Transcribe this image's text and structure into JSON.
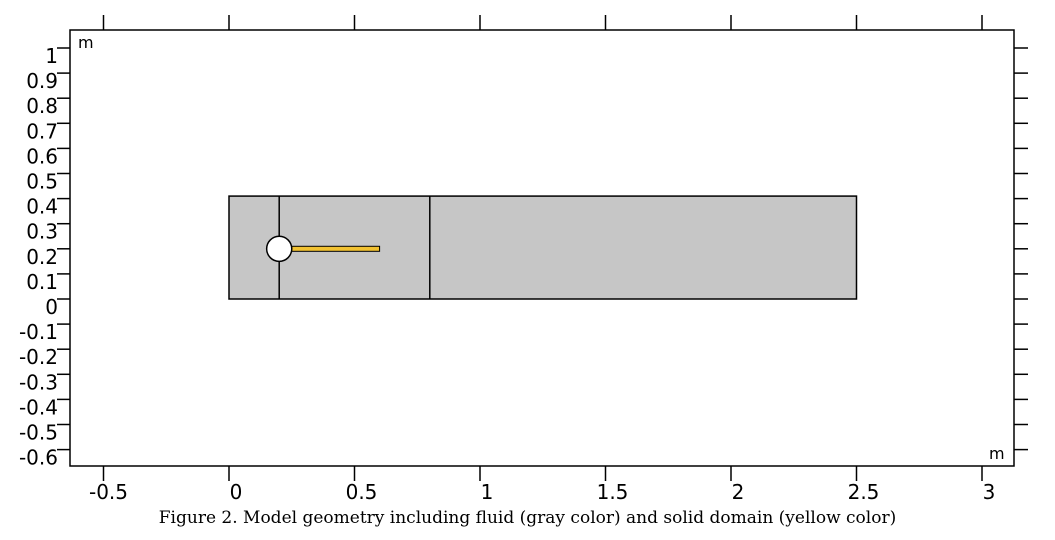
{
  "chart_data": {
    "type": "geometry",
    "x_unit": "m",
    "y_unit": "m",
    "xlim": [
      -0.65,
      3.13
    ],
    "ylim": [
      -0.66,
      1.07
    ],
    "x_ticks": [
      -0.5,
      0,
      0.5,
      1,
      1.5,
      2,
      2.5,
      3
    ],
    "x_tick_labels": [
      "-0.5",
      "0",
      "0.5",
      "1",
      "1.5",
      "2",
      "2.5",
      "3"
    ],
    "y_ticks": [
      1,
      0.9,
      0.8,
      0.7,
      0.6,
      0.5,
      0.4,
      0.3,
      0.2,
      0.1,
      0,
      -0.1,
      -0.2,
      -0.3,
      -0.4,
      -0.5,
      -0.6
    ],
    "y_tick_labels": [
      "1",
      "0.9",
      "0.8",
      "0.7",
      "0.6",
      "0.5",
      "0.4",
      "0.3",
      "0.2",
      "0.1",
      "0",
      "-0.1",
      "-0.2",
      "-0.3",
      "-0.4",
      "-0.5",
      "-0.6"
    ],
    "fluid_domain": {
      "x": [
        0,
        2.5
      ],
      "y": [
        0,
        0.41
      ],
      "color": "#c6c6c6"
    },
    "partition_lines_x": [
      0.2,
      0.8
    ],
    "cylinder": {
      "cx": 0.2,
      "cy": 0.2,
      "r": 0.05,
      "color": "#ffffff"
    },
    "solid_beam": {
      "x": [
        0.25,
        0.6
      ],
      "y": [
        0.19,
        0.21
      ],
      "color": "#f2c232"
    }
  },
  "caption": "Figure 2. Model geometry including fluid (gray color) and solid domain (yellow color)"
}
